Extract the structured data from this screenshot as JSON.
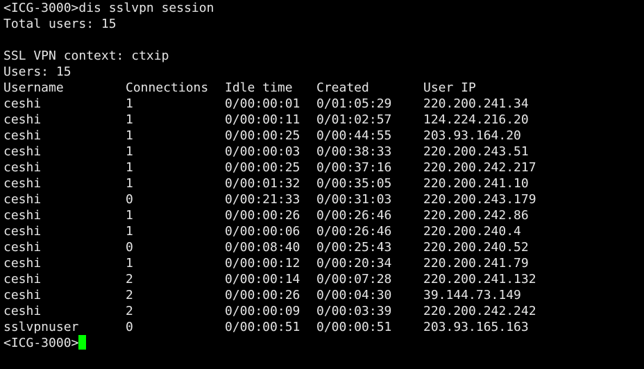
{
  "terminal": {
    "command_prompt": "<ICG-3000>",
    "command": "dis sslvpn session",
    "total_users": "Total users: 15",
    "context": "SSL VPN context: ctxip",
    "users": "Users: 15",
    "columns": [
      "Username",
      "Connections",
      "Idle time",
      "Created",
      "User IP"
    ],
    "rows": [
      [
        "ceshi",
        "1",
        "0/00:00:01",
        "0/01:05:29",
        "220.200.241.34"
      ],
      [
        "ceshi",
        "1",
        "0/00:00:11",
        "0/01:02:57",
        "124.224.216.20"
      ],
      [
        "ceshi",
        "1",
        "0/00:00:25",
        "0/00:44:55",
        "203.93.164.20"
      ],
      [
        "ceshi",
        "1",
        "0/00:00:03",
        "0/00:38:33",
        "220.200.243.51"
      ],
      [
        "ceshi",
        "1",
        "0/00:00:25",
        "0/00:37:16",
        "220.200.242.217"
      ],
      [
        "ceshi",
        "1",
        "0/00:01:32",
        "0/00:35:05",
        "220.200.241.10"
      ],
      [
        "ceshi",
        "0",
        "0/00:21:33",
        "0/00:31:03",
        "220.200.243.179"
      ],
      [
        "ceshi",
        "1",
        "0/00:00:26",
        "0/00:26:46",
        "220.200.242.86"
      ],
      [
        "ceshi",
        "1",
        "0/00:00:06",
        "0/00:26:46",
        "220.200.240.4"
      ],
      [
        "ceshi",
        "0",
        "0/00:08:40",
        "0/00:25:43",
        "220.200.240.52"
      ],
      [
        "ceshi",
        "1",
        "0/00:00:12",
        "0/00:20:34",
        "220.200.241.79"
      ],
      [
        "ceshi",
        "2",
        "0/00:00:14",
        "0/00:07:28",
        "220.200.241.132"
      ],
      [
        "ceshi",
        "2",
        "0/00:00:26",
        "0/00:04:30",
        "39.144.73.149"
      ],
      [
        "ceshi",
        "2",
        "0/00:00:09",
        "0/00:03:39",
        "220.200.242.242"
      ],
      [
        "sslvpnuser",
        "0",
        "0/00:00:51",
        "0/00:00:51",
        "203.93.165.163"
      ]
    ],
    "end_prompt": "<ICG-3000>",
    "cursor_color": "#00ff00"
  }
}
